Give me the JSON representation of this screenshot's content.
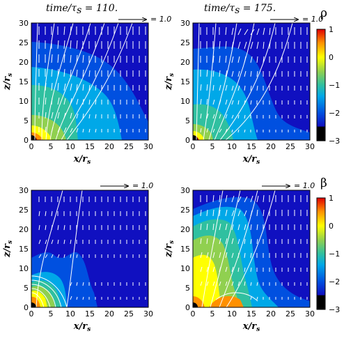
{
  "chart_data": [
    {
      "type": "heatmap",
      "quantity": "rho",
      "time_label": "time/τ",
      "time_sub": "s",
      "time_value": "110.",
      "xlabel": "x/r",
      "ylabel": "z/r",
      "unit_sub": "s",
      "xlim": [
        0,
        30
      ],
      "ylim": [
        0,
        30
      ],
      "xticks": [
        "0",
        "5",
        "10",
        "15",
        "20",
        "25",
        "30"
      ],
      "yticks": [
        "0",
        "5",
        "10",
        "15",
        "20",
        "25",
        "30"
      ],
      "reference_vector": "= 1.0"
    },
    {
      "type": "heatmap",
      "quantity": "rho",
      "time_label": "time/τ",
      "time_sub": "s",
      "time_value": "175.",
      "xlabel": "x/r",
      "ylabel": "z/r",
      "unit_sub": "s",
      "xlim": [
        0,
        30
      ],
      "ylim": [
        0,
        30
      ],
      "xticks": [
        "0",
        "5",
        "10",
        "15",
        "20",
        "25",
        "30"
      ],
      "yticks": [
        "0",
        "5",
        "10",
        "15",
        "20",
        "25",
        "30"
      ],
      "reference_vector": "= 1.0"
    },
    {
      "type": "heatmap",
      "quantity": "beta",
      "xlabel": "x/r",
      "ylabel": "z/r",
      "unit_sub": "s",
      "xlim": [
        0,
        30
      ],
      "ylim": [
        0,
        30
      ],
      "xticks": [
        "0",
        "5",
        "10",
        "15",
        "20",
        "25",
        "30"
      ],
      "yticks": [
        "0",
        "5",
        "10",
        "15",
        "20",
        "25",
        "30"
      ],
      "reference_vector": "= 1.0"
    },
    {
      "type": "heatmap",
      "quantity": "beta",
      "xlabel": "x/r",
      "ylabel": "z/r",
      "unit_sub": "s",
      "xlim": [
        0,
        30
      ],
      "ylim": [
        0,
        30
      ],
      "xticks": [
        "0",
        "5",
        "10",
        "15",
        "20",
        "25",
        "30"
      ],
      "yticks": [
        "0",
        "5",
        "10",
        "15",
        "20",
        "25",
        "30"
      ],
      "reference_vector": "= 1.0"
    }
  ],
  "colorbars": [
    {
      "symbol": "ρ",
      "range": [
        -3,
        1
      ],
      "ticks": [
        "1",
        "0",
        "−1",
        "−2",
        "−3"
      ]
    },
    {
      "symbol": "β",
      "range": [
        -3,
        1
      ],
      "ticks": [
        "1",
        "0",
        "−1",
        "−2",
        "−3"
      ]
    }
  ],
  "colors": {
    "scale": [
      "#000000",
      "#1010c0",
      "#0050e0",
      "#00a8e8",
      "#30c0a0",
      "#90d050",
      "#ffff00",
      "#ff9000",
      "#e00000"
    ]
  }
}
